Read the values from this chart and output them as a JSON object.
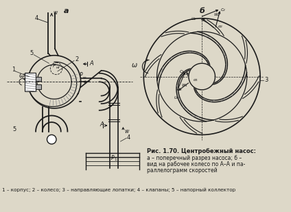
{
  "background_color": "#ddd8c8",
  "title_a": "а",
  "title_b": "б",
  "caption_title": "Рис. 1.70. Центробежный насос:",
  "caption_line1": "а – поперечный разрез насоса; б –",
  "caption_line2": "вид на рабочее колесо по А–А и па-",
  "caption_line3": "раллелограмм скоростей",
  "caption_bottom": "1 – корпус; 2 – колесо; 3 – направляющие лопатки; 4 – клапаны; 5 – напорный коллектор",
  "text_color": "#1a1a1a",
  "line_color": "#1a1a1a"
}
